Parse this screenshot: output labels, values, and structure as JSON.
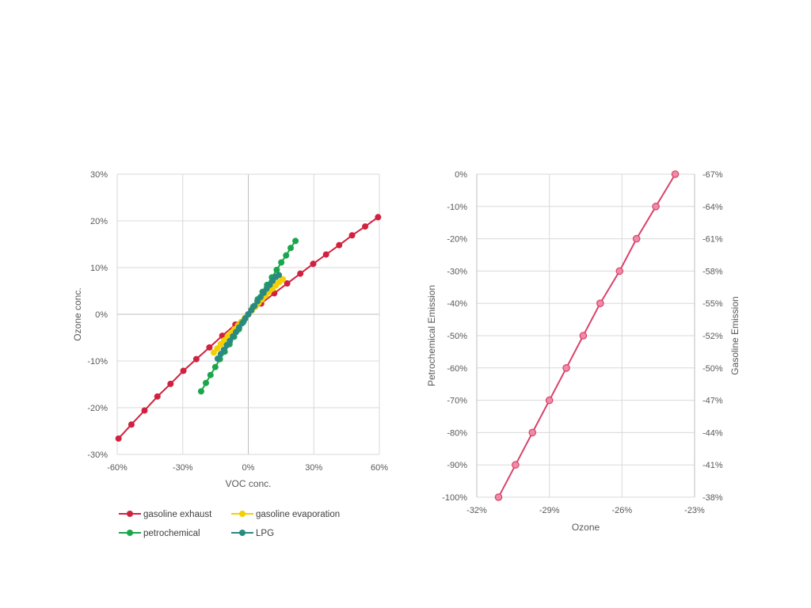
{
  "chart_data": [
    {
      "type": "line",
      "xlabel": "VOC conc.",
      "ylabel": "Ozone conc.",
      "xlim": [
        -60,
        60
      ],
      "ylim": [
        -30,
        30
      ],
      "xticks": [
        "-60%",
        "-30%",
        "0%",
        "30%",
        "60%"
      ],
      "yticks": [
        "30%",
        "20%",
        "10%",
        "0%",
        "-10%",
        "-20%",
        "-30%"
      ],
      "grid": true,
      "legend_position": "bottom",
      "series": [
        {
          "name": "gasoline exhaust",
          "color": "#d0213f",
          "x": [
            -59.4,
            -53.5,
            -47.5,
            -41.6,
            -35.6,
            -29.7,
            -23.8,
            -17.8,
            -11.9,
            -5.9,
            0,
            5.9,
            11.9,
            17.8,
            23.8,
            29.7,
            35.6,
            41.6,
            47.5,
            53.5,
            59.4
          ],
          "y": [
            -26.6,
            -23.6,
            -20.6,
            -17.6,
            -14.9,
            -12.1,
            -9.6,
            -7.1,
            -4.6,
            -2.2,
            0,
            2.3,
            4.5,
            6.6,
            8.7,
            10.8,
            12.8,
            14.8,
            16.9,
            18.8,
            20.8
          ]
        },
        {
          "name": "gasoline evaporation",
          "color": "#f4d000",
          "x": [
            -15.8,
            -14.2,
            -12.6,
            -11.1,
            -9.5,
            -7.9,
            -6.3,
            -4.7,
            -3.2,
            -1.6,
            0,
            1.6,
            3.2,
            4.7,
            6.3,
            7.9,
            9.5,
            11.1,
            12.6,
            14.2,
            15.8
          ],
          "y": [
            -8.2,
            -7.3,
            -6.4,
            -5.6,
            -4.8,
            -4.0,
            -3.2,
            -2.4,
            -1.6,
            -0.8,
            0,
            0.8,
            1.6,
            2.4,
            3.2,
            4.0,
            4.8,
            5.5,
            6.2,
            6.9,
            7.5
          ]
        },
        {
          "name": "petrochemical",
          "color": "#1aa64a",
          "x": [
            -21.6,
            -19.4,
            -17.3,
            -15.1,
            -13.0,
            -10.8,
            -8.6,
            -6.5,
            -4.3,
            -2.2,
            0,
            2.2,
            4.3,
            6.5,
            8.6,
            10.8,
            13.0,
            15.1,
            17.3,
            19.4,
            21.6
          ],
          "y": [
            -16.5,
            -14.7,
            -13.0,
            -11.3,
            -9.6,
            -8.0,
            -6.4,
            -4.8,
            -3.2,
            -1.6,
            0,
            1.6,
            3.2,
            4.8,
            6.3,
            7.9,
            9.5,
            11.1,
            12.6,
            14.2,
            15.7
          ]
        },
        {
          "name": "LPG",
          "color": "#2a8a82",
          "x": [
            -14.0,
            -12.6,
            -11.2,
            -9.8,
            -8.4,
            -7.0,
            -5.6,
            -4.2,
            -2.8,
            -1.4,
            0,
            1.4,
            2.8,
            4.2,
            5.6,
            7.0,
            8.4,
            9.8,
            11.2,
            12.6,
            14.0
          ],
          "y": [
            -9.5,
            -8.5,
            -7.6,
            -6.6,
            -5.7,
            -4.7,
            -3.8,
            -2.8,
            -1.9,
            -0.9,
            0,
            0.9,
            1.8,
            2.8,
            3.7,
            4.6,
            5.5,
            6.3,
            7.2,
            8.0,
            8.4
          ]
        }
      ]
    },
    {
      "type": "line",
      "xlabel": "Ozone",
      "ylabel": "Petrochemical Emission",
      "y2label": "Gasoline Emission",
      "xlim": [
        -32,
        -23
      ],
      "ylim": [
        -100,
        0
      ],
      "y2lim": [
        -38,
        -67
      ],
      "xticks": [
        "-32%",
        "-29%",
        "-26%",
        "-23%"
      ],
      "yticks": [
        "0%",
        "-10%",
        "-20%",
        "-30%",
        "-40%",
        "-50%",
        "-60%",
        "-70%",
        "-80%",
        "-90%",
        "-100%"
      ],
      "y2ticks": [
        "-67%",
        "-64%",
        "-61%",
        "-58%",
        "-55%",
        "-52%",
        "-50%",
        "-47%",
        "-44%",
        "-41%",
        "-38%"
      ],
      "grid": true,
      "series": [
        {
          "color": "#d9436b",
          "marker_fill": "#f08aa6",
          "x": [
            -31.1,
            -30.4,
            -29.7,
            -29.0,
            -28.3,
            -27.6,
            -26.9,
            -26.1,
            -25.4,
            -24.6,
            -23.8
          ],
          "y": [
            -100,
            -90,
            -80,
            -70,
            -60,
            -50,
            -40,
            -30,
            -20,
            -10,
            0
          ]
        }
      ]
    }
  ]
}
